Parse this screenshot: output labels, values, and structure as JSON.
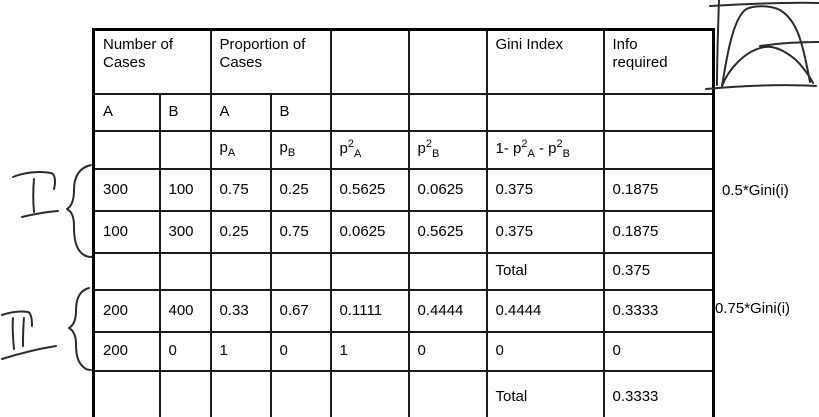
{
  "page": {
    "background": "#ffffff",
    "text_color": "#000000",
    "border_color": "#000000"
  },
  "table": {
    "rows": [
      {
        "cells": [
          "Number of<br>Cases",
          "Proportion of<br>Cases",
          "",
          "",
          "Gini Index",
          "Info<br>required"
        ]
      },
      {
        "cells": [
          "A",
          "B",
          "A",
          "B",
          "",
          "",
          "",
          ""
        ]
      },
      {
        "cells": [
          "",
          "",
          "p<sub>A</sub>",
          "p<sub>B</sub>",
          "p<sup>2</sup><sub>A</sub>",
          "p<sup>2</sup><sub>B</sub>",
          "1- p<sup>2</sup><sub>A</sub> - p<sup>2</sup><sub>B</sub>",
          ""
        ]
      },
      {
        "cells": [
          "300",
          "100",
          "0.75",
          "0.25",
          "0.5625",
          "0.0625",
          "0.375",
          "0.1875"
        ]
      },
      {
        "cells": [
          "100",
          "300",
          "0.25",
          "0.75",
          "0.0625",
          "0.5625",
          "0.375",
          "0.1875"
        ]
      },
      {
        "cells": [
          "",
          "",
          "",
          "",
          "",
          "",
          "Total",
          "0.375"
        ]
      },
      {
        "cells": [
          "200",
          "400",
          "0.33",
          "0.67",
          "0.1111",
          "0.4444",
          "0.4444",
          "0.3333"
        ]
      },
      {
        "cells": [
          "200",
          "0",
          "1",
          "0",
          "1",
          "0",
          "0",
          "0"
        ]
      },
      {
        "cells": [
          "",
          "",
          "",
          "",
          "",
          "",
          "Total",
          "0.3333"
        ]
      }
    ]
  },
  "side_labels": {
    "group1": "0.5*Gini(i)",
    "group2": "0.75*Gini(i)"
  },
  "annotations": {
    "group1_numeral": "I",
    "group2_numeral": "II",
    "sketch_name": "impurity-curves-sketch"
  }
}
